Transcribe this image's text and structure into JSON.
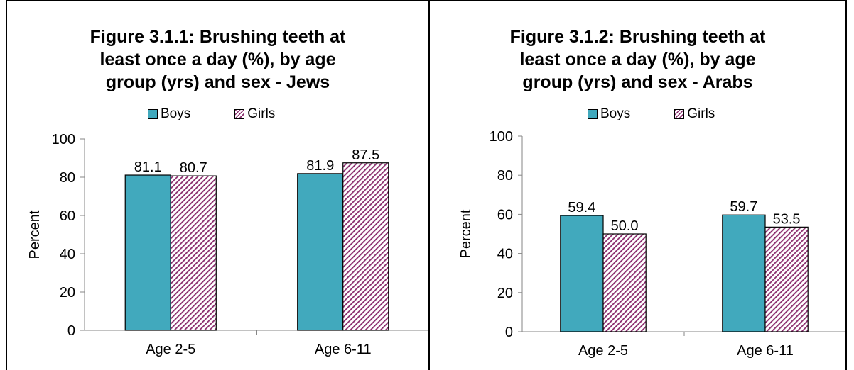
{
  "colors": {
    "boys": "#41a9bd",
    "girls_stripe": "#8b2d6e"
  },
  "chart_data": [
    {
      "type": "bar",
      "title_lines": [
        "Figure 3.1.1: Brushing teeth at",
        "least once a day (%), by age",
        "group (yrs) and sex - Jews"
      ],
      "categories": [
        "Age 2-5",
        "Age 6-11"
      ],
      "series": [
        {
          "name": "Boys",
          "values": [
            81.1,
            81.9
          ],
          "labels": [
            "81.1",
            "81.9"
          ]
        },
        {
          "name": "Girls",
          "values": [
            80.7,
            87.5
          ],
          "labels": [
            "80.7",
            "87.5"
          ]
        }
      ],
      "ylabel": "Percent",
      "ylim": [
        0,
        100
      ],
      "yticks": [
        0,
        20,
        40,
        60,
        80,
        100
      ],
      "legend_position": "top"
    },
    {
      "type": "bar",
      "title_lines": [
        "Figure 3.1.2: Brushing teeth at",
        "least once a day (%), by age",
        "group (yrs) and sex - Arabs"
      ],
      "categories": [
        "Age 2-5",
        "Age 6-11"
      ],
      "series": [
        {
          "name": "Boys",
          "values": [
            59.4,
            59.7
          ],
          "labels": [
            "59.4",
            "59.7"
          ]
        },
        {
          "name": "Girls",
          "values": [
            50.0,
            53.5
          ],
          "labels": [
            "50.0",
            "53.5"
          ]
        }
      ],
      "ylabel": "Percent",
      "ylim": [
        0,
        100
      ],
      "yticks": [
        0,
        20,
        40,
        60,
        80,
        100
      ],
      "legend_position": "top"
    }
  ]
}
